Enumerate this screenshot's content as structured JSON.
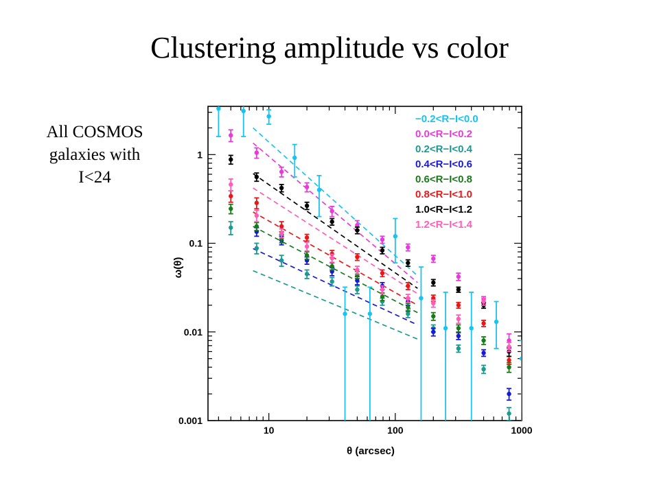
{
  "slide": {
    "title": "Clustering amplitude vs color",
    "note_lines": [
      "All COSMOS",
      "galaxies with",
      "I<24"
    ]
  },
  "chart_data": {
    "type": "scatter",
    "xlabel": "θ (arcsec)",
    "ylabel": "ω(θ)",
    "xscale": "log",
    "yscale": "log",
    "xlim": [
      3.3,
      1000
    ],
    "ylim": [
      0.001,
      3.5
    ],
    "x_ticks": [
      10,
      100,
      1000
    ],
    "x_tick_labels": [
      "10",
      "100",
      "1000"
    ],
    "y_ticks": [
      0.001,
      0.01,
      0.1,
      1
    ],
    "y_tick_labels": [
      "0.001",
      "0.01",
      "0.1",
      "1"
    ],
    "legend_position": "top-right",
    "series": [
      {
        "name": "−0.2<R−I<0.0",
        "color": "#19c3f0",
        "x": [
          4,
          6.3,
          10,
          16,
          25,
          40,
          63,
          100,
          160,
          250,
          400,
          630,
          1000
        ],
        "y": [
          3.3,
          3.1,
          2.7,
          0.92,
          0.4,
          0.016,
          0.016,
          0.12,
          0.024,
          0.011,
          0.011,
          0.013,
          0.005
        ],
        "err_lo": [
          1.7,
          1.5,
          0.5,
          0.36,
          0.2,
          0.0159,
          0.0159,
          0.06,
          0.0238,
          0.0109,
          0.0109,
          0.0065,
          0.0049
        ],
        "err_hi": [
          2.0,
          2.0,
          0.5,
          0.38,
          0.18,
          0.016,
          0.016,
          0.07,
          0.03,
          0.017,
          0.017,
          0.009,
          0.003
        ],
        "fit": [
          [
            7.5,
            2.0
          ],
          [
            150,
            0.043
          ]
        ]
      },
      {
        "name": "0.0<R−I<0.2",
        "color": "#e83ad8",
        "x": [
          5,
          8,
          12.6,
          20,
          31.6,
          50,
          79,
          126,
          200,
          316,
          500,
          794
        ],
        "y": [
          1.65,
          1.05,
          0.64,
          0.43,
          0.23,
          0.16,
          0.11,
          0.09,
          0.067,
          0.042,
          0.023,
          0.008
        ],
        "err_lo": [
          0.25,
          0.14,
          0.08,
          0.05,
          0.03,
          0.02,
          0.01,
          0.008,
          0.006,
          0.004,
          0.002,
          0.0015
        ],
        "err_hi": [
          0.25,
          0.14,
          0.08,
          0.05,
          0.03,
          0.02,
          0.01,
          0.008,
          0.006,
          0.004,
          0.002,
          0.0015
        ],
        "fit": [
          [
            7.5,
            1.35
          ],
          [
            150,
            0.036
          ]
        ]
      },
      {
        "name": "0.2<R−I<0.4",
        "color": "#1a9a90",
        "x": [
          5,
          8,
          12.6,
          20,
          31.6,
          50,
          79,
          126,
          200,
          316,
          500,
          794
        ],
        "y": [
          0.15,
          0.088,
          0.064,
          0.045,
          0.037,
          0.03,
          0.022,
          0.016,
          0.011,
          0.0065,
          0.0038,
          0.0012
        ],
        "err_lo": [
          0.025,
          0.012,
          0.009,
          0.005,
          0.004,
          0.003,
          0.002,
          0.0015,
          0.001,
          0.0006,
          0.0004,
          0.0002
        ],
        "err_hi": [
          0.025,
          0.012,
          0.009,
          0.005,
          0.004,
          0.003,
          0.002,
          0.0015,
          0.001,
          0.0006,
          0.0004,
          0.0002
        ],
        "fit": [
          [
            7.5,
            0.049
          ],
          [
            150,
            0.0083
          ]
        ]
      },
      {
        "name": "0.4<R−I<0.6",
        "color": "#1818d8",
        "x": [
          8,
          12.6,
          20,
          31.6,
          50,
          79,
          126,
          200,
          316,
          500,
          794
        ],
        "y": [
          0.135,
          0.108,
          0.064,
          0.048,
          0.038,
          0.033,
          0.022,
          0.01,
          0.009,
          0.0058,
          0.002
        ],
        "err_lo": [
          0.015,
          0.012,
          0.006,
          0.005,
          0.004,
          0.003,
          0.002,
          0.001,
          0.0008,
          0.0005,
          0.0003
        ],
        "err_hi": [
          0.015,
          0.012,
          0.006,
          0.005,
          0.004,
          0.003,
          0.002,
          0.001,
          0.0008,
          0.0005,
          0.0003
        ],
        "fit": [
          [
            7.5,
            0.087
          ],
          [
            150,
            0.012
          ]
        ]
      },
      {
        "name": "0.6<R−I<0.8",
        "color": "#1a7a1a",
        "x": [
          5,
          8,
          12.6,
          20,
          31.6,
          50,
          79,
          126,
          200,
          316,
          500,
          794
        ],
        "y": [
          0.245,
          0.155,
          0.113,
          0.073,
          0.055,
          0.044,
          0.025,
          0.019,
          0.015,
          0.011,
          0.008,
          0.004
        ],
        "err_lo": [
          0.03,
          0.016,
          0.012,
          0.007,
          0.005,
          0.004,
          0.0025,
          0.002,
          0.0015,
          0.001,
          0.0008,
          0.0005
        ],
        "err_hi": [
          0.03,
          0.016,
          0.012,
          0.007,
          0.005,
          0.004,
          0.0025,
          0.002,
          0.0015,
          0.001,
          0.0008,
          0.0005
        ],
        "fit": [
          [
            7.5,
            0.155
          ],
          [
            150,
            0.0165
          ]
        ]
      },
      {
        "name": "0.8<R−I<1.0",
        "color": "#e81818",
        "x": [
          5,
          8,
          12.6,
          20,
          31.6,
          50,
          79,
          126,
          200,
          316,
          500,
          794
        ],
        "y": [
          0.34,
          0.285,
          0.155,
          0.116,
          0.076,
          0.07,
          0.046,
          0.033,
          0.024,
          0.02,
          0.0125,
          0.0048
        ],
        "err_lo": [
          0.05,
          0.04,
          0.02,
          0.01,
          0.007,
          0.006,
          0.004,
          0.003,
          0.002,
          0.0015,
          0.001,
          0.0005
        ],
        "err_hi": [
          0.05,
          0.04,
          0.02,
          0.01,
          0.007,
          0.006,
          0.004,
          0.003,
          0.002,
          0.0015,
          0.001,
          0.0005
        ],
        "fit": [
          [
            7.5,
            0.225
          ],
          [
            150,
            0.02
          ]
        ]
      },
      {
        "name": "1.0<R−I<1.2",
        "color": "#000000",
        "x": [
          5,
          8,
          12.6,
          20,
          31.6,
          50,
          79,
          126,
          200,
          316,
          500,
          794
        ],
        "y": [
          0.88,
          0.56,
          0.42,
          0.265,
          0.175,
          0.14,
          0.083,
          0.06,
          0.036,
          0.03,
          0.02,
          0.006
        ],
        "err_lo": [
          0.1,
          0.06,
          0.04,
          0.025,
          0.015,
          0.012,
          0.007,
          0.005,
          0.003,
          0.002,
          0.0015,
          0.0007
        ],
        "err_hi": [
          0.1,
          0.06,
          0.04,
          0.025,
          0.015,
          0.012,
          0.007,
          0.005,
          0.003,
          0.002,
          0.0015,
          0.0007
        ],
        "fit": [
          [
            7.5,
            0.61
          ],
          [
            150,
            0.031
          ]
        ]
      },
      {
        "name": "1.2<R−I<1.4",
        "color": "#ff5cb8",
        "x": [
          5,
          8,
          12.6,
          20,
          31.6,
          50,
          79,
          126,
          200,
          316,
          500,
          794
        ],
        "y": [
          0.46,
          0.205,
          0.13,
          0.092,
          0.068,
          0.05,
          0.03,
          0.024,
          0.021,
          0.014,
          0.022,
          0.0068
        ],
        "err_lo": [
          0.07,
          0.03,
          0.015,
          0.01,
          0.007,
          0.005,
          0.003,
          0.0025,
          0.002,
          0.0015,
          0.002,
          0.0008
        ],
        "err_hi": [
          0.07,
          0.03,
          0.015,
          0.01,
          0.007,
          0.005,
          0.003,
          0.0025,
          0.002,
          0.0015,
          0.002,
          0.0008
        ],
        "fit": [
          [
            7.5,
            0.42
          ],
          [
            150,
            0.027
          ]
        ]
      }
    ]
  }
}
